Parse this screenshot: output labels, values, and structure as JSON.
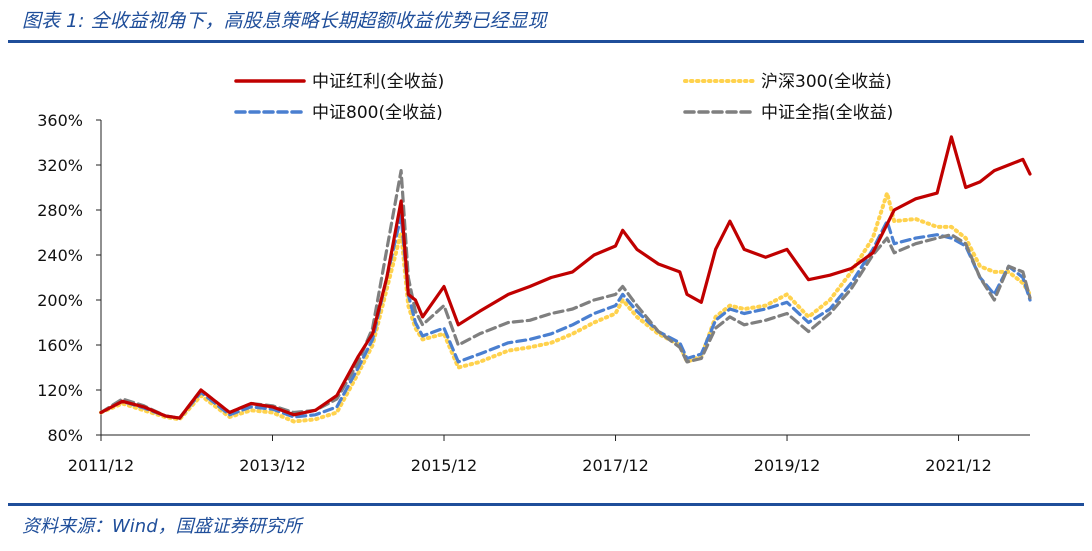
{
  "header": {
    "title": "图表 1:  全收益视角下，高股息策略长期超额收益优势已经显现"
  },
  "footer": {
    "source": "资料来源：Wind，国盛证券研究所"
  },
  "chart_data": {
    "type": "line",
    "x_ticks": [
      "2011/12",
      "2013/12",
      "2015/12",
      "2017/12",
      "2019/12",
      "2021/12"
    ],
    "x_range": [
      "2011-12",
      "2022-10"
    ],
    "ylim": [
      0.8,
      3.6
    ],
    "y_ticks": [
      "80%",
      "120%",
      "160%",
      "200%",
      "240%",
      "280%",
      "320%",
      "360%"
    ],
    "grid": false,
    "legend_position": "top",
    "series": [
      {
        "name": "中证红利(全收益)",
        "color": "#c00000",
        "style": "solid",
        "x": [
          "2011-12",
          "2012-03",
          "2012-06",
          "2012-09",
          "2012-11",
          "2013-02",
          "2013-06",
          "2013-09",
          "2013-12",
          "2014-03",
          "2014-06",
          "2014-09",
          "2014-12",
          "2015-02",
          "2015-04",
          "2015-06",
          "2015-07",
          "2015-08",
          "2015-09",
          "2015-12",
          "2016-02",
          "2016-05",
          "2016-09",
          "2016-12",
          "2017-03",
          "2017-06",
          "2017-09",
          "2017-12",
          "2018-01",
          "2018-03",
          "2018-06",
          "2018-09",
          "2018-10",
          "2018-12",
          "2019-02",
          "2019-04",
          "2019-06",
          "2019-09",
          "2019-12",
          "2020-03",
          "2020-06",
          "2020-09",
          "2020-12",
          "2021-03",
          "2021-06",
          "2021-09",
          "2021-11",
          "2022-01",
          "2022-03",
          "2022-05",
          "2022-07",
          "2022-09",
          "2022-10"
        ],
        "y": [
          1.0,
          1.1,
          1.05,
          0.97,
          0.95,
          1.2,
          1.0,
          1.08,
          1.05,
          0.98,
          1.02,
          1.15,
          1.5,
          1.7,
          2.2,
          2.88,
          2.05,
          2.0,
          1.85,
          2.12,
          1.78,
          1.9,
          2.05,
          2.12,
          2.2,
          2.25,
          2.4,
          2.48,
          2.62,
          2.45,
          2.32,
          2.25,
          2.05,
          1.98,
          2.45,
          2.7,
          2.45,
          2.38,
          2.45,
          2.18,
          2.22,
          2.28,
          2.42,
          2.8,
          2.9,
          2.95,
          3.45,
          3.0,
          3.05,
          3.15,
          3.2,
          3.25,
          3.12
        ]
      },
      {
        "name": "沪深300(全收益)",
        "color": "#ffd24d",
        "style": "dotted",
        "x": [
          "2011-12",
          "2012-03",
          "2012-06",
          "2012-09",
          "2012-11",
          "2013-02",
          "2013-06",
          "2013-09",
          "2013-12",
          "2014-03",
          "2014-06",
          "2014-09",
          "2014-12",
          "2015-02",
          "2015-04",
          "2015-06",
          "2015-07",
          "2015-08",
          "2015-09",
          "2015-12",
          "2016-02",
          "2016-05",
          "2016-09",
          "2016-12",
          "2017-03",
          "2017-06",
          "2017-09",
          "2017-12",
          "2018-01",
          "2018-03",
          "2018-06",
          "2018-09",
          "2018-10",
          "2018-12",
          "2019-02",
          "2019-04",
          "2019-06",
          "2019-09",
          "2019-12",
          "2020-03",
          "2020-06",
          "2020-09",
          "2020-12",
          "2021-02",
          "2021-03",
          "2021-06",
          "2021-09",
          "2021-11",
          "2022-01",
          "2022-03",
          "2022-05",
          "2022-07",
          "2022-09",
          "2022-10"
        ],
        "y": [
          1.0,
          1.08,
          1.02,
          0.96,
          0.94,
          1.15,
          0.96,
          1.02,
          1.0,
          0.92,
          0.94,
          1.0,
          1.35,
          1.6,
          2.1,
          2.6,
          1.95,
          1.75,
          1.65,
          1.7,
          1.4,
          1.45,
          1.55,
          1.58,
          1.62,
          1.7,
          1.8,
          1.88,
          2.0,
          1.85,
          1.7,
          1.6,
          1.45,
          1.5,
          1.85,
          1.95,
          1.92,
          1.95,
          2.05,
          1.85,
          2.0,
          2.25,
          2.55,
          2.95,
          2.7,
          2.72,
          2.65,
          2.65,
          2.55,
          2.3,
          2.25,
          2.25,
          2.15,
          2.05
        ]
      },
      {
        "name": "中证800(全收益)",
        "color": "#4a7fd0",
        "style": "dashed",
        "x": [
          "2011-12",
          "2012-03",
          "2012-06",
          "2012-09",
          "2012-11",
          "2013-02",
          "2013-06",
          "2013-09",
          "2013-12",
          "2014-03",
          "2014-06",
          "2014-09",
          "2014-12",
          "2015-02",
          "2015-04",
          "2015-06",
          "2015-07",
          "2015-08",
          "2015-09",
          "2015-12",
          "2016-02",
          "2016-05",
          "2016-09",
          "2016-12",
          "2017-03",
          "2017-06",
          "2017-09",
          "2017-12",
          "2018-01",
          "2018-03",
          "2018-06",
          "2018-09",
          "2018-10",
          "2018-12",
          "2019-02",
          "2019-04",
          "2019-06",
          "2019-09",
          "2019-12",
          "2020-03",
          "2020-06",
          "2020-09",
          "2020-12",
          "2021-02",
          "2021-03",
          "2021-06",
          "2021-09",
          "2021-11",
          "2022-01",
          "2022-03",
          "2022-05",
          "2022-07",
          "2022-09",
          "2022-10"
        ],
        "y": [
          1.0,
          1.1,
          1.04,
          0.97,
          0.95,
          1.18,
          0.98,
          1.05,
          1.03,
          0.96,
          0.98,
          1.05,
          1.4,
          1.65,
          2.2,
          2.75,
          2.05,
          1.8,
          1.68,
          1.75,
          1.45,
          1.52,
          1.62,
          1.65,
          1.7,
          1.78,
          1.88,
          1.95,
          2.05,
          1.9,
          1.72,
          1.62,
          1.48,
          1.52,
          1.82,
          1.92,
          1.88,
          1.92,
          1.98,
          1.8,
          1.92,
          2.15,
          2.45,
          2.7,
          2.5,
          2.55,
          2.58,
          2.55,
          2.48,
          2.2,
          2.05,
          2.3,
          2.2,
          2.0
        ]
      },
      {
        "name": "中证全指(全收益)",
        "color": "#7f7f7f",
        "style": "dashed",
        "x": [
          "2011-12",
          "2012-03",
          "2012-06",
          "2012-09",
          "2012-11",
          "2013-02",
          "2013-06",
          "2013-09",
          "2013-12",
          "2014-03",
          "2014-06",
          "2014-09",
          "2014-12",
          "2015-02",
          "2015-04",
          "2015-06",
          "2015-07",
          "2015-08",
          "2015-09",
          "2015-12",
          "2016-02",
          "2016-05",
          "2016-09",
          "2016-12",
          "2017-03",
          "2017-06",
          "2017-09",
          "2017-12",
          "2018-01",
          "2018-03",
          "2018-06",
          "2018-09",
          "2018-10",
          "2018-12",
          "2019-02",
          "2019-04",
          "2019-06",
          "2019-09",
          "2019-12",
          "2020-03",
          "2020-06",
          "2020-09",
          "2020-12",
          "2021-02",
          "2021-03",
          "2021-06",
          "2021-09",
          "2021-11",
          "2022-01",
          "2022-03",
          "2022-05",
          "2022-07",
          "2022-09",
          "2022-10"
        ],
        "y": [
          1.0,
          1.12,
          1.06,
          0.97,
          0.95,
          1.2,
          1.0,
          1.08,
          1.06,
          1.0,
          1.02,
          1.12,
          1.45,
          1.75,
          2.45,
          3.15,
          2.2,
          1.9,
          1.78,
          1.95,
          1.6,
          1.7,
          1.8,
          1.82,
          1.88,
          1.92,
          2.0,
          2.05,
          2.12,
          1.95,
          1.72,
          1.58,
          1.45,
          1.48,
          1.75,
          1.85,
          1.78,
          1.82,
          1.88,
          1.72,
          1.88,
          2.1,
          2.4,
          2.55,
          2.42,
          2.5,
          2.55,
          2.58,
          2.5,
          2.2,
          2.0,
          2.3,
          2.25,
          2.02
        ]
      }
    ]
  }
}
